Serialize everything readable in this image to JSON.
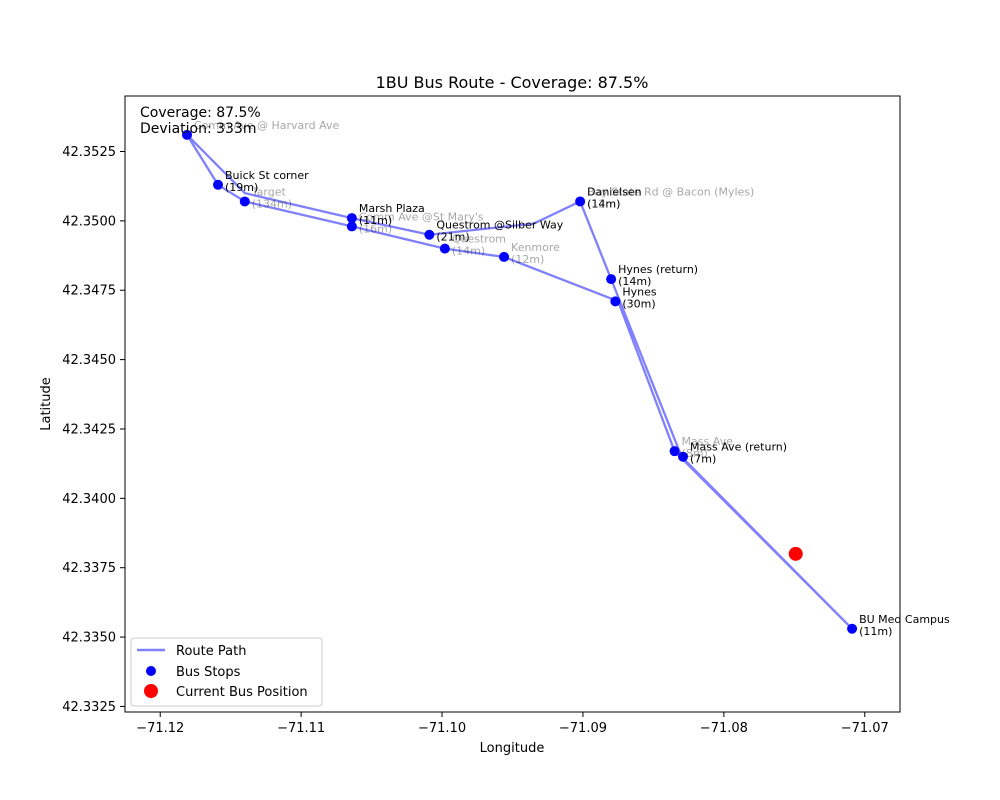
{
  "chart_data": {
    "type": "scatter",
    "title": "1BU Bus Route - Coverage: 87.5%",
    "xlabel": "Longitude",
    "ylabel": "Latitude",
    "xlim": [
      -71.1225,
      -71.0675
    ],
    "ylim": [
      42.3323,
      42.3545
    ],
    "xticks": [
      -71.12,
      -71.11,
      -71.1,
      -71.09,
      -71.08,
      -71.07
    ],
    "xtick_labels": [
      "−71.12",
      "−71.11",
      "−71.10",
      "−71.09",
      "−71.08",
      "−71.07"
    ],
    "yticks": [
      42.3325,
      42.335,
      42.3375,
      42.34,
      42.3425,
      42.345,
      42.3475,
      42.35,
      42.3525
    ],
    "ytick_labels": [
      "42.3325",
      "42.3350",
      "42.3375",
      "42.3400",
      "42.3425",
      "42.3450",
      "42.3475",
      "42.3500",
      "42.3525"
    ],
    "grid": false,
    "legend_position": "lower-left",
    "info_box": [
      "Coverage: 87.5%",
      "Deviation: 333m"
    ],
    "series": [
      {
        "name": "Route Path",
        "kind": "line",
        "color": "#8080ff",
        "points": [
          [
            -71.1181,
            42.3531
          ],
          [
            -71.1159,
            42.3513
          ],
          [
            -71.114,
            42.3507
          ],
          [
            -71.1064,
            42.3498
          ],
          [
            -71.0998,
            42.349
          ],
          [
            -71.0956,
            42.3487
          ],
          [
            -71.0875,
            42.3471
          ],
          [
            -71.0835,
            42.3417
          ],
          [
            -71.0709,
            42.3353
          ],
          [
            -71.083,
            42.3415
          ],
          [
            -71.088,
            42.3479
          ],
          [
            -71.0902,
            42.3507
          ],
          [
            -71.0935,
            42.3499
          ],
          [
            -71.1009,
            42.3495
          ],
          [
            -71.1064,
            42.3501
          ],
          [
            -71.114,
            42.351
          ],
          [
            -71.1181,
            42.3531
          ]
        ]
      },
      {
        "name": "Bus Stops",
        "kind": "scatter",
        "color": "#0000ff",
        "points": [
          [
            -71.1181,
            42.3531
          ],
          [
            -71.1159,
            42.3513
          ],
          [
            -71.114,
            42.3507
          ],
          [
            -71.1064,
            42.3501
          ],
          [
            -71.1064,
            42.3498
          ],
          [
            -71.1009,
            42.3495
          ],
          [
            -71.0998,
            42.349
          ],
          [
            -71.0956,
            42.3487
          ],
          [
            -71.0902,
            42.3507
          ],
          [
            -71.088,
            42.3479
          ],
          [
            -71.0877,
            42.3471
          ],
          [
            -71.0835,
            42.3417
          ],
          [
            -71.0829,
            42.3415
          ],
          [
            -71.0709,
            42.3353
          ]
        ]
      },
      {
        "name": "Current Bus Position",
        "kind": "scatter",
        "color": "#ff0000",
        "points": [
          [
            -71.0749,
            42.338
          ]
        ]
      }
    ],
    "stop_labels": [
      {
        "x": -71.1181,
        "y": 42.3531,
        "lines": [
          "Comm Ave @ Harvard Ave"
        ],
        "faded": true
      },
      {
        "x": -71.1159,
        "y": 42.3513,
        "lines": [
          "Buick St corner",
          "(19m)"
        ],
        "faded": false
      },
      {
        "x": -71.114,
        "y": 42.3507,
        "lines": [
          "Target",
          "(134m)"
        ],
        "faded": true
      },
      {
        "x": -71.1064,
        "y": 42.3501,
        "lines": [
          "Marsh Plaza",
          "(11m)"
        ],
        "faded": false
      },
      {
        "x": -71.1064,
        "y": 42.3498,
        "lines": [
          "Comm Ave @St Mary's",
          "(16m)"
        ],
        "faded": true
      },
      {
        "x": -71.1009,
        "y": 42.3495,
        "lines": [
          "Questrom @Silber Way",
          "(21m)"
        ],
        "faded": false
      },
      {
        "x": -71.0998,
        "y": 42.349,
        "lines": [
          "Questrom",
          "(14m)"
        ],
        "faded": true
      },
      {
        "x": -71.0956,
        "y": 42.3487,
        "lines": [
          "Kenmore",
          "(12m)"
        ],
        "faded": true
      },
      {
        "x": -71.0902,
        "y": 42.3507,
        "lines": [
          "Danielsen",
          "(14m)"
        ],
        "faded": false
      },
      {
        "x": -71.0902,
        "y": 42.3507,
        "lines": [
          "Bay State Rd @ Bacon (Myles)",
          "(12m)"
        ],
        "faded": true
      },
      {
        "x": -71.088,
        "y": 42.3479,
        "lines": [
          "Hynes (return)",
          "(14m)"
        ],
        "faded": false
      },
      {
        "x": -71.0877,
        "y": 42.3471,
        "lines": [
          "Hynes",
          "(30m)"
        ],
        "faded": false
      },
      {
        "x": -71.0835,
        "y": 42.3417,
        "lines": [
          "Mass Ave",
          "(8m)"
        ],
        "faded": true
      },
      {
        "x": -71.0829,
        "y": 42.3415,
        "lines": [
          "Mass Ave (return)",
          "(7m)"
        ],
        "faded": false
      },
      {
        "x": -71.0709,
        "y": 42.3353,
        "lines": [
          "BU Med Campus",
          "(11m)"
        ],
        "faded": false
      }
    ]
  }
}
